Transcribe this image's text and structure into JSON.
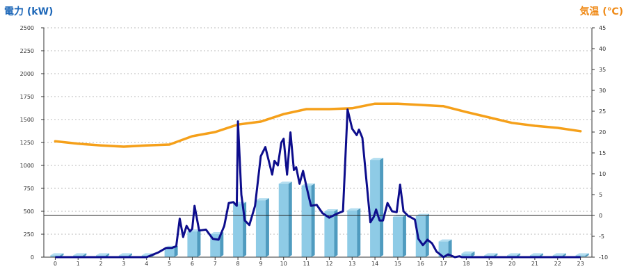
{
  "colors": {
    "power_line": "#0d0d8c",
    "temp_line": "#f5a01a",
    "bar_front": "#8ecbe6",
    "bar_side": "#4f9bbf",
    "bar_top": "#b4def0",
    "left_title": "#1d67b8",
    "right_title": "#ef8a17",
    "grid": "#bbbbbb"
  },
  "chart_data": {
    "type": "bar+line",
    "ylabel_left": "電力 (kW)",
    "ylabel_right": "気温 (℃)",
    "left_ticks": [
      "0",
      "250",
      "500",
      "750",
      "1000",
      "1250",
      "1500",
      "1750",
      "2000",
      "2250",
      "2500"
    ],
    "right_ticks": [
      "-10",
      "-5",
      "0",
      "5",
      "10",
      "15",
      "20",
      "25",
      "30",
      "35",
      "40",
      "45"
    ],
    "ylim_left": [
      0,
      2500
    ],
    "ylim_right": [
      -10,
      45
    ],
    "grid": "horizontal dashed",
    "zero_line_right": 0,
    "categories": [
      "0",
      "1",
      "2",
      "3",
      "4",
      "5",
      "6",
      "7",
      "8",
      "9",
      "10",
      "11",
      "12",
      "13",
      "14",
      "15",
      "16",
      "17",
      "18",
      "19",
      "20",
      "21",
      "22",
      "23"
    ],
    "bars_kw": [
      20,
      20,
      20,
      20,
      20,
      100,
      280,
      250,
      580,
      620,
      800,
      780,
      500,
      510,
      1060,
      440,
      450,
      170,
      40,
      20,
      20,
      20,
      20,
      20
    ],
    "temperature_c": [
      17.8,
      17.2,
      16.8,
      16.5,
      16.8,
      17.0,
      19.0,
      20.0,
      21.8,
      22.5,
      24.3,
      25.5,
      25.5,
      25.7,
      26.8,
      26.8,
      26.5,
      26.2,
      24.8,
      23.5,
      22.2,
      21.5,
      21.0,
      20.2
    ],
    "power_series": {
      "name": "",
      "x": [
        0.0,
        4.0,
        4.5,
        4.85,
        5.1,
        5.3,
        5.45,
        5.6,
        5.75,
        5.9,
        6.0,
        6.1,
        6.3,
        6.6,
        6.9,
        7.15,
        7.4,
        7.6,
        7.8,
        7.95,
        8.0,
        8.15,
        8.3,
        8.5,
        8.75,
        9.0,
        9.2,
        9.5,
        9.6,
        9.75,
        9.9,
        10.0,
        10.15,
        10.3,
        10.45,
        10.55,
        10.7,
        10.85,
        11.0,
        11.2,
        11.45,
        11.7,
        12.0,
        12.3,
        12.6,
        12.8,
        13.0,
        13.2,
        13.3,
        13.45,
        13.6,
        13.8,
        13.95,
        14.05,
        14.2,
        14.35,
        14.55,
        14.75,
        14.95,
        15.1,
        15.25,
        15.45,
        15.6,
        15.75,
        15.9,
        16.1,
        16.3,
        16.5,
        16.7,
        16.85,
        17.0,
        17.2,
        17.5,
        17.7,
        17.8,
        17.9,
        18.0,
        23.0
      ],
      "y": [
        0,
        0,
        50,
        100,
        100,
        120,
        420,
        220,
        340,
        280,
        310,
        560,
        290,
        300,
        200,
        190,
        340,
        590,
        600,
        560,
        1480,
        680,
        400,
        350,
        560,
        1100,
        1200,
        900,
        1050,
        1000,
        1250,
        1290,
        900,
        1360,
        950,
        980,
        800,
        940,
        770,
        560,
        570,
        480,
        430,
        470,
        500,
        1610,
        1400,
        1330,
        1390,
        1300,
        900,
        380,
        440,
        520,
        400,
        400,
        590,
        500,
        490,
        790,
        500,
        450,
        430,
        410,
        200,
        130,
        190,
        150,
        60,
        30,
        0,
        30,
        0,
        10,
        0,
        0,
        0,
        0
      ]
    }
  }
}
